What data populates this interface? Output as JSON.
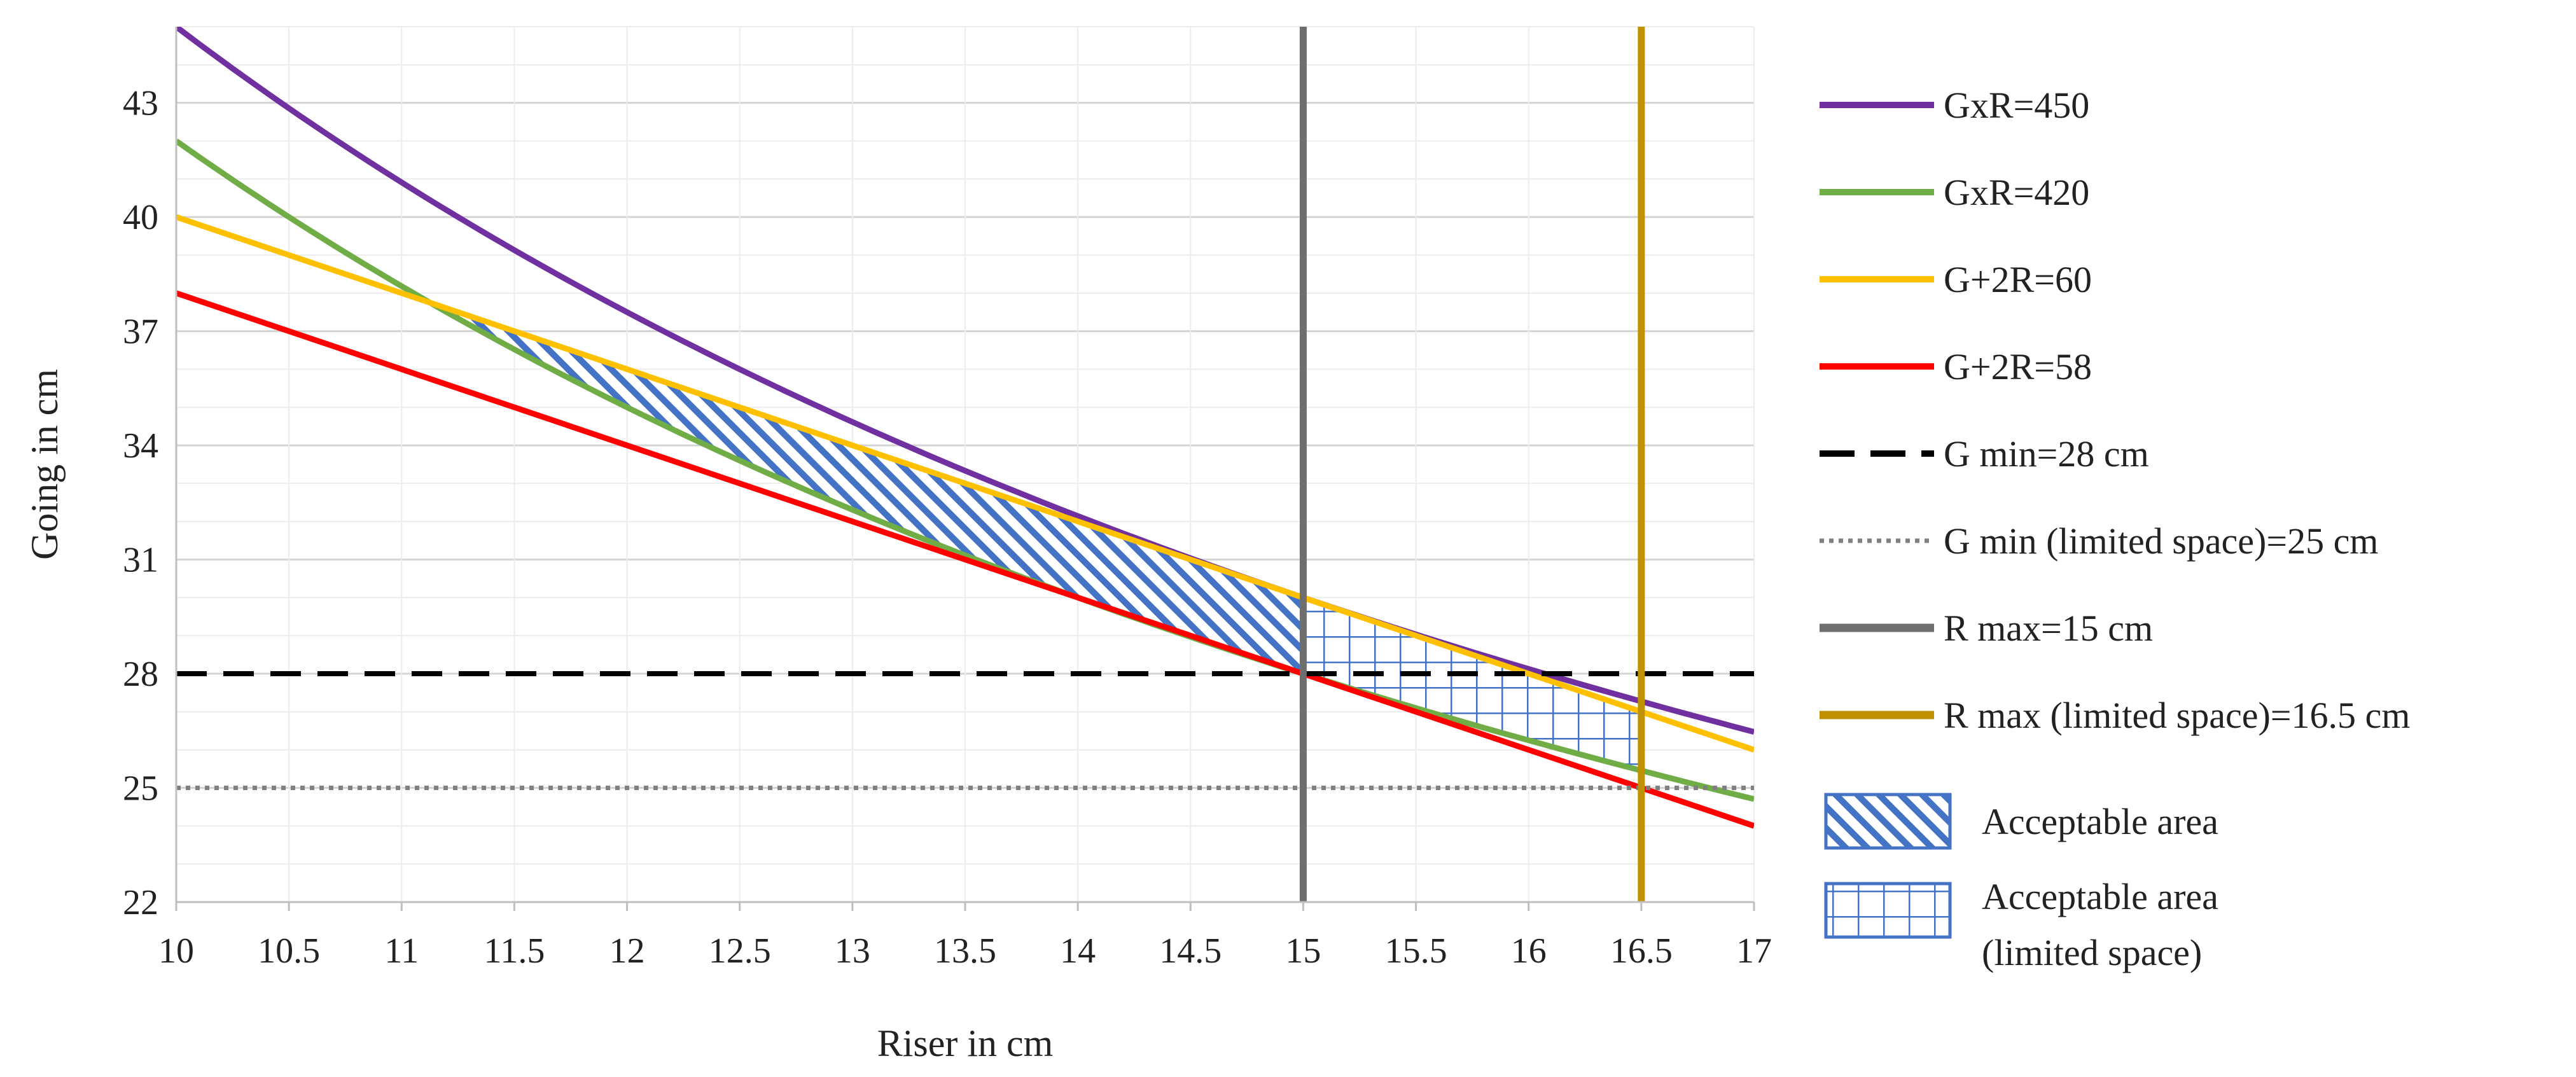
{
  "chart_data": {
    "type": "line",
    "title": "",
    "xlabel": "Riser in cm",
    "ylabel": "Going in cm",
    "xlim": [
      10,
      17
    ],
    "ylim": [
      22,
      45
    ],
    "x_ticks": [
      "10",
      "10.5",
      "11",
      "11.5",
      "12",
      "12.5",
      "13",
      "13.5",
      "14",
      "14.5",
      "15",
      "15.5",
      "16",
      "16.5",
      "17"
    ],
    "y_ticks": [
      "22",
      "25",
      "28",
      "31",
      "34",
      "37",
      "40",
      "43"
    ],
    "grid": true,
    "legend_position": "right",
    "series": [
      {
        "name": "GxR=450",
        "kind": "curve",
        "product": 450,
        "color": "#7030A0",
        "x": [
          10,
          10.5,
          11,
          11.5,
          12,
          12.5,
          13,
          13.5,
          14,
          14.5,
          15,
          15.5,
          16,
          16.5,
          17
        ],
        "y": [
          45.0,
          42.9,
          40.9,
          39.1,
          37.5,
          36.0,
          34.6,
          33.3,
          32.1,
          31.0,
          30.0,
          29.0,
          28.1,
          27.3,
          26.5
        ]
      },
      {
        "name": "GxR=420",
        "kind": "curve",
        "product": 420,
        "color": "#70AD47",
        "x": [
          10,
          10.5,
          11,
          11.5,
          12,
          12.5,
          13,
          13.5,
          14,
          14.5,
          15,
          15.5,
          16,
          16.5,
          17
        ],
        "y": [
          42.0,
          40.0,
          38.2,
          36.5,
          35.0,
          33.6,
          32.3,
          31.1,
          30.0,
          29.0,
          28.0,
          27.1,
          26.3,
          25.5,
          24.7
        ]
      },
      {
        "name": "G+2R=60",
        "kind": "line",
        "color": "#FFC000",
        "x": [
          10,
          17
        ],
        "y": [
          40,
          26
        ]
      },
      {
        "name": "G+2R=58",
        "kind": "line",
        "color": "#FF0000",
        "x": [
          10,
          17
        ],
        "y": [
          38,
          24
        ]
      },
      {
        "name": "G min=28 cm",
        "kind": "hline",
        "color": "#000000",
        "dash": "dashed",
        "x": [
          10,
          17
        ],
        "y": [
          28,
          28
        ]
      },
      {
        "name": "G min (limited space)=25 cm",
        "kind": "hline",
        "color": "#808080",
        "dash": "dotted",
        "x": [
          10,
          17
        ],
        "y": [
          25,
          25
        ]
      },
      {
        "name": "R max=15 cm",
        "kind": "vline",
        "color": "#6E6E6E",
        "x": 15
      },
      {
        "name": "R max (limited space)=16.5 cm",
        "kind": "vline",
        "color": "#BF9000",
        "x": 16.5
      }
    ],
    "areas": [
      {
        "name": "Acceptable area",
        "pattern": "diagonal",
        "color": "#4472C4",
        "x_from": 11.25,
        "x_to": 15
      },
      {
        "name": "Acceptable area (limited space)",
        "pattern": "grid",
        "color": "#4472C4",
        "x_from": 15,
        "x_to": 16.5
      }
    ]
  }
}
